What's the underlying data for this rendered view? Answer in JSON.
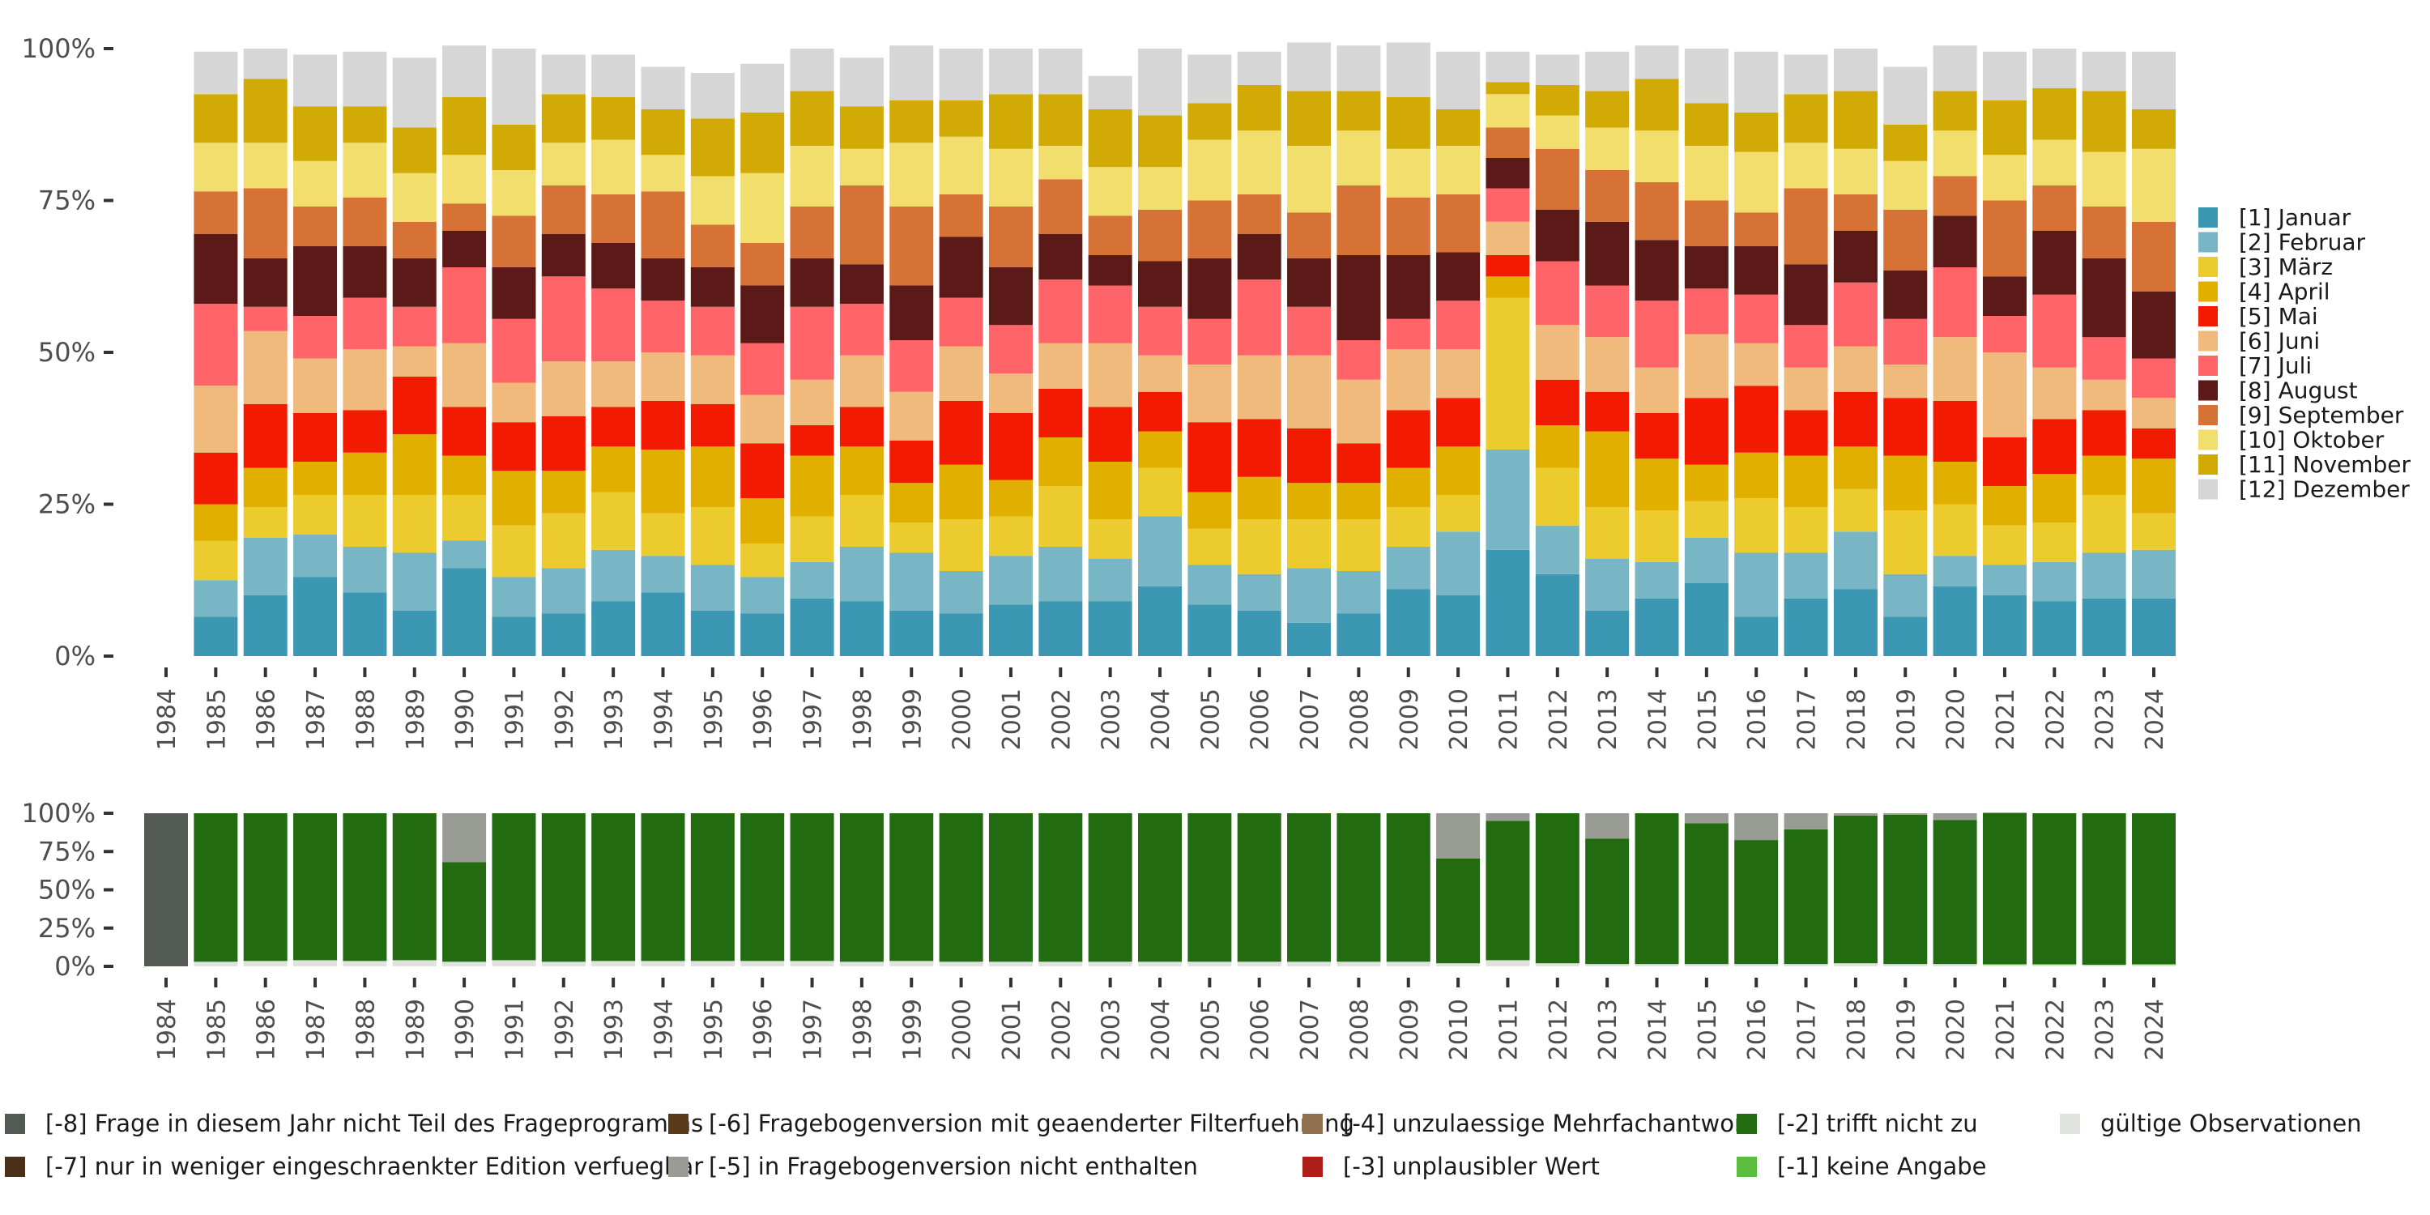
{
  "chart_data": [
    {
      "type": "bar",
      "stacked": true,
      "title": "",
      "xlabel": "",
      "ylabel": "",
      "ylim": [
        0,
        100
      ],
      "y_ticks": [
        "0%",
        "25%",
        "50%",
        "75%",
        "100%"
      ],
      "legend_position": "right",
      "categories": [
        "1984",
        "1985",
        "1986",
        "1987",
        "1988",
        "1989",
        "1990",
        "1991",
        "1992",
        "1993",
        "1994",
        "1995",
        "1996",
        "1997",
        "1998",
        "1999",
        "2000",
        "2001",
        "2002",
        "2003",
        "2004",
        "2005",
        "2006",
        "2007",
        "2008",
        "2009",
        "2010",
        "2011",
        "2012",
        "2013",
        "2014",
        "2015",
        "2016",
        "2017",
        "2018",
        "2019",
        "2020",
        "2021",
        "2022",
        "2023",
        "2024"
      ],
      "series": [
        {
          "name": "[1] Januar",
          "color": "#3C98B2",
          "values": [
            null,
            6.5,
            10,
            13,
            10.5,
            7.5,
            14.5,
            6.5,
            7,
            9,
            10.5,
            7.5,
            7,
            9.5,
            9,
            7.5,
            7,
            8.5,
            9,
            9,
            11.5,
            8.5,
            7.5,
            5.5,
            7,
            11,
            10,
            17.5,
            13.5,
            7.5,
            9.5,
            12,
            6.5,
            9.5,
            11,
            6.5,
            11.5,
            10,
            9,
            9.5,
            9.5
          ]
        },
        {
          "name": "[2] Februar",
          "color": "#79B6C5",
          "values": [
            null,
            6,
            9.5,
            7,
            7.5,
            9.5,
            4.5,
            6.5,
            7.5,
            8.5,
            6,
            7.5,
            6,
            6,
            9,
            9.5,
            7,
            8,
            9,
            7,
            11.5,
            6.5,
            6,
            9,
            7,
            7,
            10.5,
            16.5,
            8,
            8.5,
            6,
            7.5,
            10.5,
            7.5,
            9.5,
            7,
            5,
            5,
            6.5,
            7.5,
            8
          ]
        },
        {
          "name": "[3] März",
          "color": "#EBCB2E",
          "values": [
            null,
            6.5,
            5,
            6.5,
            8.5,
            9.5,
            7.5,
            8.5,
            9,
            9.5,
            7,
            9.5,
            5.5,
            7.5,
            8.5,
            5,
            8.5,
            6.5,
            10,
            6.5,
            8,
            6,
            9,
            8,
            8.5,
            6.5,
            6,
            25,
            9.5,
            8.5,
            8.5,
            6,
            9,
            7.5,
            7,
            10.5,
            8.5,
            6.5,
            6.5,
            9.5,
            6
          ]
        },
        {
          "name": "[4] April",
          "color": "#E0AF00",
          "values": [
            null,
            6,
            6.5,
            5.5,
            7,
            10,
            6.5,
            9,
            7,
            7.5,
            10.5,
            10,
            7.5,
            10,
            8,
            6.5,
            9,
            6,
            8,
            9.5,
            6,
            6,
            7,
            6,
            6,
            6.5,
            8,
            3.5,
            7,
            12.5,
            8.5,
            6,
            7.5,
            8.5,
            7,
            9,
            7,
            6.5,
            8,
            6.5,
            9
          ]
        },
        {
          "name": "[5] Mai",
          "color": "#F21A00",
          "values": [
            null,
            8.5,
            10.5,
            8,
            7,
            9.5,
            8,
            8,
            9,
            6.5,
            8,
            7,
            9,
            5,
            6.5,
            7,
            10.5,
            11,
            8,
            9,
            6.5,
            11.5,
            9.5,
            9,
            6.5,
            9.5,
            8,
            3.5,
            7.5,
            6.5,
            7.5,
            11,
            11,
            7.5,
            9,
            9.5,
            10,
            8,
            9,
            7.5,
            5
          ]
        },
        {
          "name": "[6] Juni",
          "color": "#F0BA7D",
          "values": [
            null,
            11,
            12,
            9,
            10,
            5,
            10.5,
            6.5,
            9,
            7.5,
            8,
            8,
            8,
            7.5,
            8.5,
            8,
            9,
            6.5,
            7.5,
            10.5,
            6,
            9.5,
            10.5,
            12,
            10.5,
            10,
            8,
            5.5,
            9,
            9,
            7.5,
            10.5,
            7,
            7,
            7.5,
            5.5,
            10.5,
            14,
            8.5,
            5,
            5
          ]
        },
        {
          "name": "[7] Juli",
          "color": "#FF6468",
          "values": [
            null,
            13.5,
            4,
            7,
            8.5,
            6.5,
            12.5,
            10.5,
            14,
            12,
            8.5,
            8,
            8.5,
            12,
            8.5,
            8.5,
            8,
            8,
            10.5,
            9.5,
            8,
            7.5,
            12.5,
            8,
            6.5,
            5,
            8,
            5.5,
            10.5,
            8.5,
            11,
            7.5,
            8,
            7,
            10.5,
            7.5,
            11.5,
            6,
            12,
            7,
            6.5
          ]
        },
        {
          "name": "[8] August",
          "color": "#5B1A18",
          "values": [
            null,
            11.5,
            8,
            11.5,
            8.5,
            8,
            6,
            8.5,
            7,
            7.5,
            7,
            6.5,
            9.5,
            8,
            6.5,
            9,
            10,
            9.5,
            7.5,
            5,
            7.5,
            10,
            7.5,
            8,
            14,
            10.5,
            8,
            5,
            8.5,
            10.5,
            10,
            7,
            8,
            10,
            8.5,
            8,
            8.5,
            6.5,
            10.5,
            13,
            11
          ]
        },
        {
          "name": "[9] September",
          "color": "#D67236",
          "values": [
            null,
            7,
            11.5,
            6.5,
            8,
            6,
            4.5,
            8.5,
            8,
            8,
            11,
            7,
            7,
            8.5,
            13,
            13,
            7,
            10,
            9,
            6.5,
            8.5,
            9.5,
            6.5,
            7.5,
            11.5,
            9.5,
            9.5,
            5,
            10,
            8.5,
            9.5,
            7.5,
            5.5,
            12.5,
            6,
            10,
            6.5,
            12.5,
            7.5,
            8.5,
            11.5
          ]
        },
        {
          "name": "[10] Oktober",
          "color": "#F1DE6D",
          "values": [
            null,
            8,
            7.5,
            7.5,
            9,
            8,
            8,
            7.5,
            7,
            9,
            6,
            8,
            11.5,
            10,
            6,
            10.5,
            9.5,
            9.5,
            5.5,
            8,
            7,
            10,
            10.5,
            11,
            9,
            8,
            8,
            5.5,
            5.5,
            7,
            8.5,
            9,
            10,
            7.5,
            7.5,
            8,
            7.5,
            7.5,
            7.5,
            9,
            12
          ]
        },
        {
          "name": "[11] November",
          "color": "#D1AA05",
          "values": [
            null,
            8,
            10.5,
            9,
            6,
            7.5,
            9.5,
            7.5,
            8,
            7,
            7.5,
            9.5,
            10,
            9,
            7,
            7,
            6,
            9,
            8.5,
            9.5,
            8.5,
            6,
            7.5,
            9,
            6.5,
            8.5,
            6,
            2,
            5,
            6,
            8.5,
            7,
            6.5,
            8,
            9.5,
            6,
            6.5,
            9,
            8.5,
            10,
            6.5
          ]
        },
        {
          "name": "[12] Dezember",
          "color": "#D6D6D6",
          "values": [
            null,
            7,
            5,
            8.5,
            9,
            11.5,
            8.5,
            12.5,
            6.5,
            7,
            7,
            7.5,
            8,
            7,
            8,
            9,
            8.5,
            7.5,
            7.5,
            5.5,
            11,
            8,
            5.5,
            8,
            7.5,
            9,
            9.5,
            5,
            5,
            6.5,
            5.5,
            9,
            10,
            6.5,
            7,
            9.5,
            7.5,
            8,
            6.5,
            6.5,
            9.5
          ]
        }
      ]
    },
    {
      "type": "bar",
      "stacked": true,
      "title": "",
      "xlabel": "",
      "ylabel": "",
      "ylim": [
        0,
        100
      ],
      "y_ticks": [
        "0%",
        "25%",
        "50%",
        "75%",
        "100%"
      ],
      "legend_position": "bottom",
      "categories": [
        "1984",
        "1985",
        "1986",
        "1987",
        "1988",
        "1989",
        "1990",
        "1991",
        "1992",
        "1993",
        "1994",
        "1995",
        "1996",
        "1997",
        "1998",
        "1999",
        "2000",
        "2001",
        "2002",
        "2003",
        "2004",
        "2005",
        "2006",
        "2007",
        "2008",
        "2009",
        "2010",
        "2011",
        "2012",
        "2013",
        "2014",
        "2015",
        "2016",
        "2017",
        "2018",
        "2019",
        "2020",
        "2021",
        "2022",
        "2023",
        "2024"
      ],
      "series": [
        {
          "name": "gültige Observationen",
          "color": "#DFE3DE",
          "values": [
            0,
            3,
            3.5,
            4,
            3.5,
            4,
            3,
            4,
            3,
            3.5,
            3.5,
            3.5,
            3.5,
            3.5,
            3,
            3.5,
            3,
            3,
            3,
            3,
            3,
            3,
            3,
            3,
            3,
            3,
            2,
            4,
            2,
            1.5,
            1.5,
            1.5,
            1.5,
            1.5,
            2,
            1.5,
            1.5,
            1,
            1,
            1,
            1
          ]
        },
        {
          "name": "[-1] keine Angabe",
          "color": "#5BBE3F",
          "values": [
            0,
            0,
            0,
            0,
            0,
            0,
            0,
            0,
            0,
            0,
            0,
            0,
            0,
            0,
            0,
            0,
            0,
            0,
            0,
            0,
            0,
            0,
            0,
            0,
            0,
            0,
            0,
            0,
            0,
            0,
            0,
            0,
            0,
            0,
            0,
            0,
            0,
            0.5,
            0.5,
            0,
            0.5
          ]
        },
        {
          "name": "[-2] trifft nicht zu",
          "color": "#226B10",
          "values": [
            0,
            97,
            96.5,
            96,
            96.5,
            96,
            65,
            96,
            97,
            96.5,
            96.5,
            96.5,
            96.5,
            96.5,
            97,
            96.5,
            97,
            97,
            97,
            97,
            97,
            97,
            97,
            97,
            97,
            97,
            68.5,
            91,
            98,
            82,
            98.5,
            92,
            81,
            88,
            96.5,
            97.5,
            94,
            98.5,
            98.5,
            99,
            98.5
          ]
        },
        {
          "name": "[-3] unplausibler Wert",
          "color": "#AF1D19",
          "values": [
            0,
            0,
            0,
            0,
            0,
            0,
            0,
            0,
            0,
            0,
            0,
            0,
            0,
            0,
            0,
            0,
            0,
            0,
            0,
            0,
            0,
            0,
            0,
            0,
            0,
            0,
            0,
            0,
            0,
            0,
            0,
            0,
            0,
            0,
            0,
            0,
            0,
            0,
            0,
            0,
            0
          ]
        },
        {
          "name": "[-4] unzulaessige Mehrfachantwort",
          "color": "#90704E",
          "values": [
            0,
            0,
            0,
            0,
            0,
            0,
            0,
            0,
            0,
            0,
            0,
            0,
            0,
            0,
            0,
            0,
            0,
            0,
            0,
            0,
            0,
            0,
            0,
            0,
            0,
            0,
            0,
            0,
            0,
            0,
            0,
            0,
            0,
            0,
            0,
            0,
            0,
            0,
            0,
            0,
            0
          ]
        },
        {
          "name": "[-5] in Fragebogenversion nicht enthalten",
          "color": "#989C94",
          "values": [
            0,
            0,
            0,
            0,
            0,
            0,
            32,
            0,
            0,
            0,
            0,
            0,
            0,
            0,
            0,
            0,
            0,
            0,
            0,
            0,
            0,
            0,
            0,
            0,
            0,
            0,
            29.5,
            5,
            0,
            16.5,
            0,
            6.5,
            17.5,
            10.5,
            1.5,
            1,
            4.5,
            0.5,
            0,
            0,
            0
          ]
        },
        {
          "name": "[-6] Fragebogenversion mit geaenderter Filterfuehrung",
          "color": "#593A1A",
          "values": [
            0,
            0,
            0,
            0,
            0,
            0,
            0,
            0,
            0,
            0,
            0,
            0,
            0,
            0,
            0,
            0,
            0,
            0,
            0,
            0,
            0,
            0,
            0,
            0,
            0,
            0,
            0,
            0,
            0,
            0,
            0,
            0,
            0,
            0,
            0,
            0,
            0,
            0,
            0,
            0,
            0
          ]
        },
        {
          "name": "[-7] nur in weniger eingeschraenkter Edition verfuegbar",
          "color": "#4B3019",
          "values": [
            0,
            0,
            0,
            0,
            0,
            0,
            0,
            0,
            0,
            0,
            0,
            0,
            0,
            0,
            0,
            0,
            0,
            0,
            0,
            0,
            0,
            0,
            0,
            0,
            0,
            0,
            0,
            0,
            0,
            0,
            0,
            0,
            0,
            0,
            0,
            0,
            0,
            0,
            0,
            0,
            0
          ]
        },
        {
          "name": "[-8] Frage in diesem Jahr nicht Teil des Frageprogramms",
          "color": "#535A53",
          "values": [
            100,
            0,
            0,
            0,
            0,
            0,
            0,
            0,
            0,
            0,
            0,
            0,
            0,
            0,
            0,
            0,
            0,
            0,
            0,
            0,
            0,
            0,
            0,
            0,
            0,
            0,
            0,
            0,
            0,
            0,
            0,
            0,
            0,
            0,
            0,
            0,
            0,
            0,
            0,
            0,
            0
          ]
        }
      ],
      "legend_order": [
        "[-8] Frage in diesem Jahr nicht Teil des Frageprogramms",
        "[-7] nur in weniger eingeschraenkter Edition verfuegbar",
        "[-6] Fragebogenversion mit geaenderter Filterfuehrung",
        "[-5] in Fragebogenversion nicht enthalten",
        "[-4] unzulaessige Mehrfachantwort",
        "[-3] unplausibler Wert",
        "[-2] trifft nicht zu",
        "[-1] keine Angabe",
        "gültige Observationen"
      ]
    }
  ]
}
